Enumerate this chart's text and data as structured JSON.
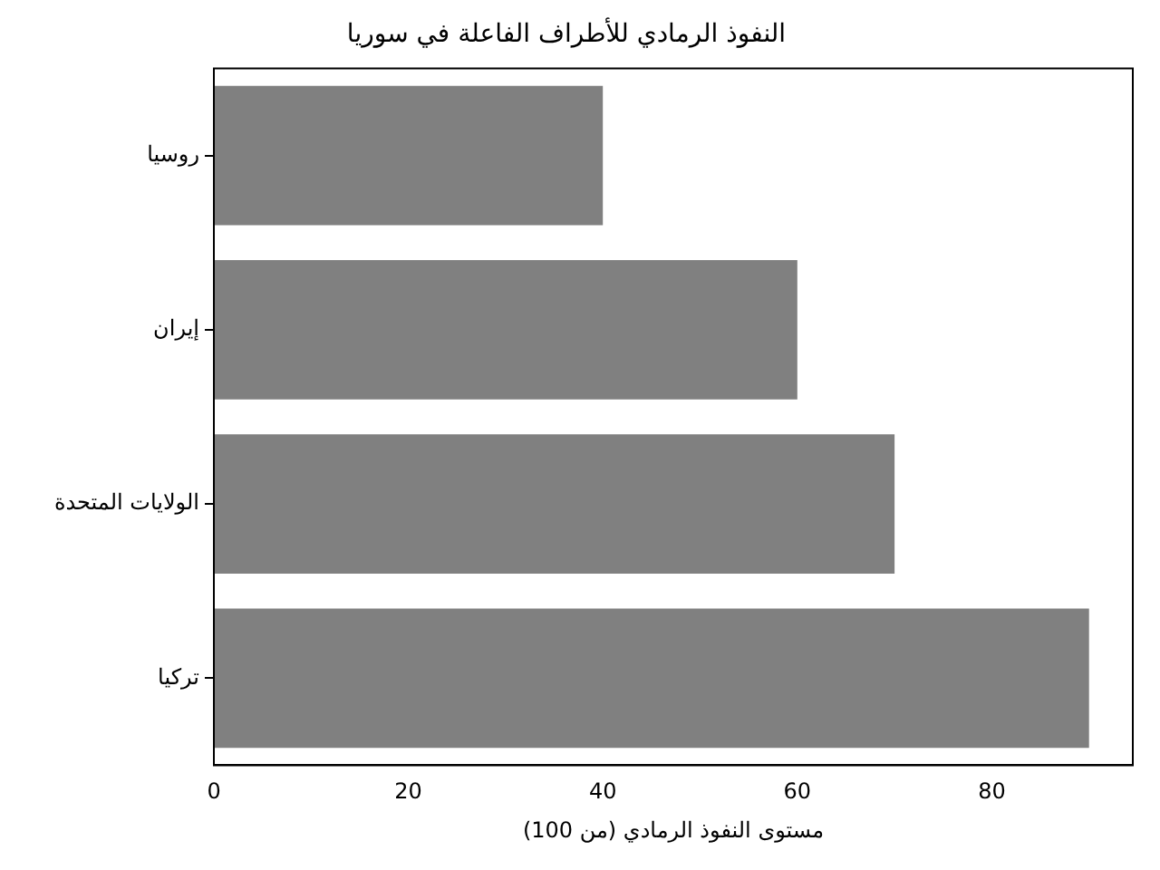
{
  "chart_data": {
    "type": "bar",
    "orientation": "horizontal",
    "title": "النفوذ الرمادي للأطراف الفاعلة في سوريا",
    "xlabel": "مستوى النفوذ الرمادي (من 100)",
    "categories": [
      "روسيا",
      "إيران",
      "الولايات المتحدة",
      "تركيا"
    ],
    "values": [
      40,
      60,
      70,
      90
    ],
    "color": "#808080",
    "xlim": [
      0,
      94.5
    ],
    "xticks": [
      0,
      20,
      40,
      60,
      80
    ],
    "grid": false,
    "legend": false
  }
}
